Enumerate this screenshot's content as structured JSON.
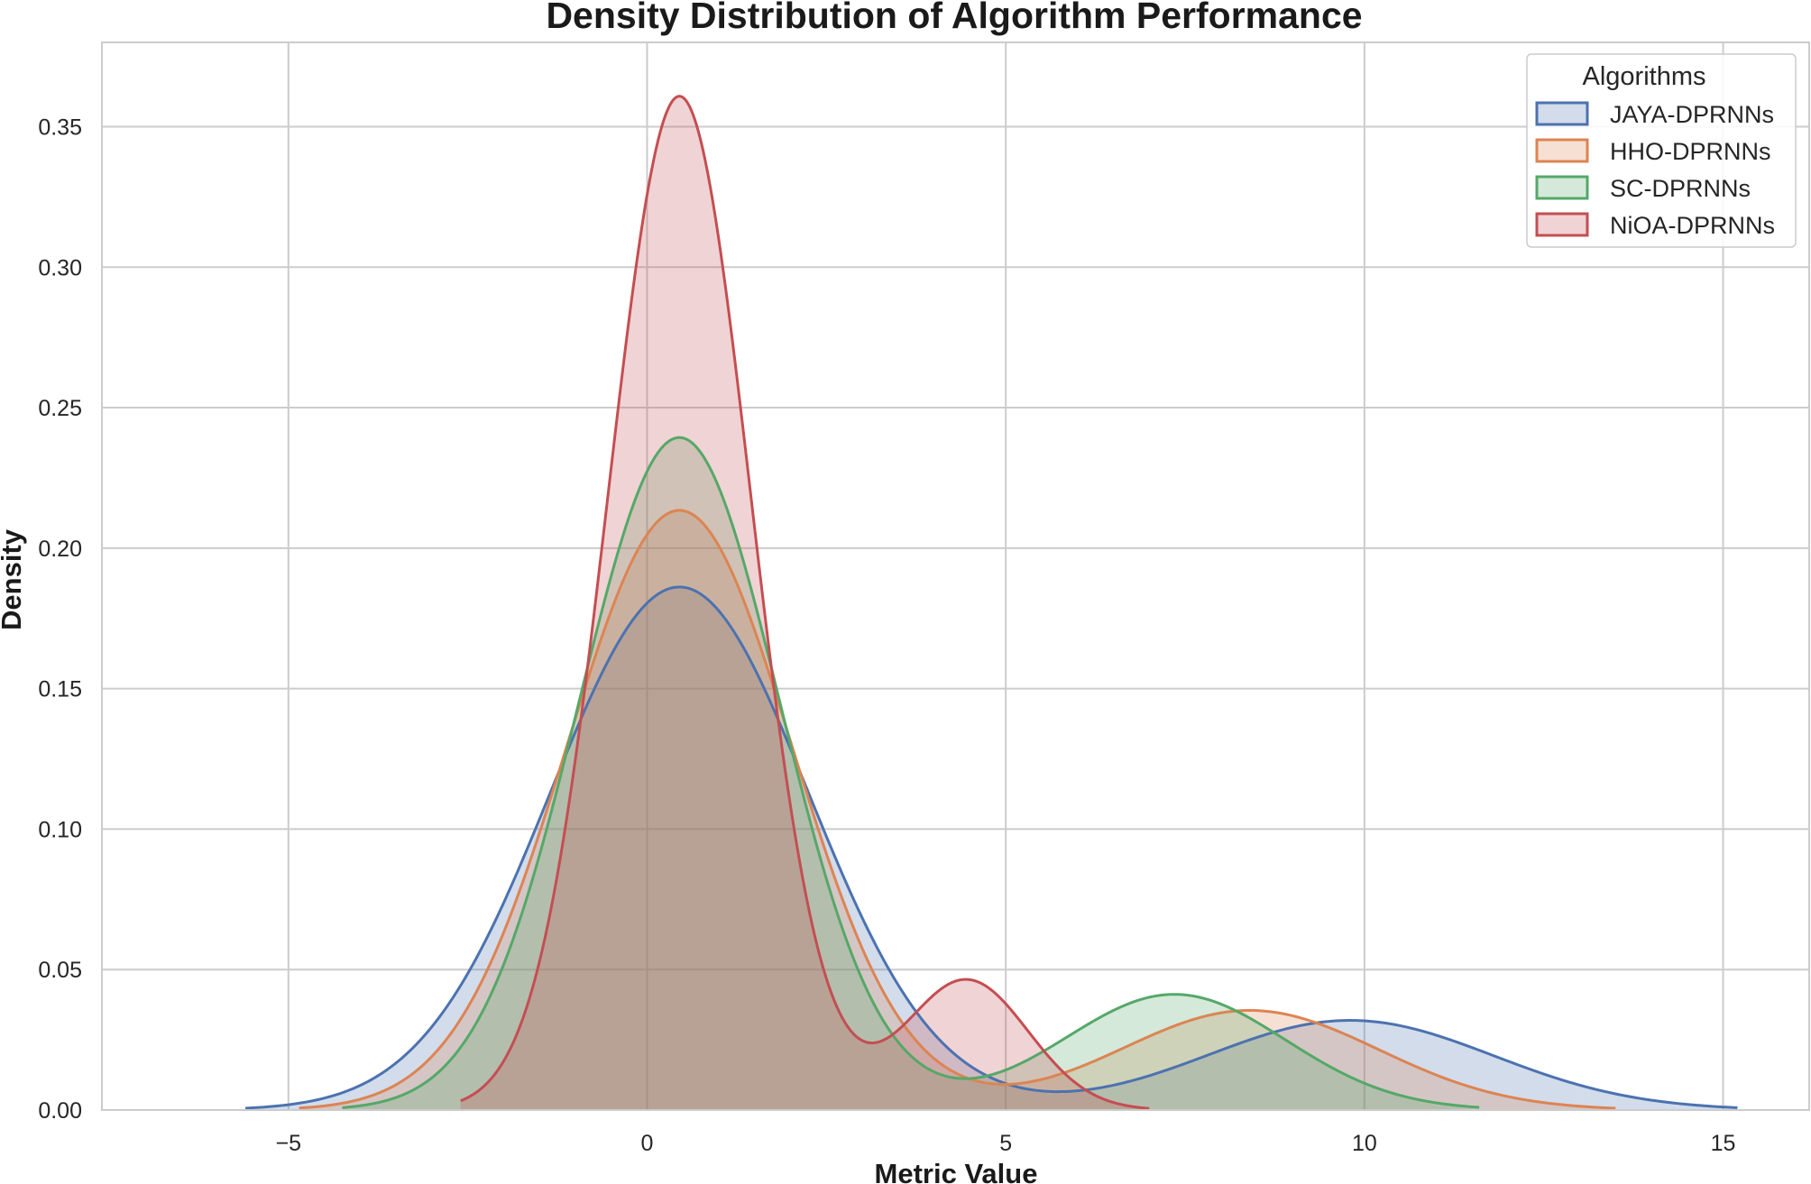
{
  "chart_data": {
    "type": "area",
    "subtype": "kde-density",
    "title": "Density Distribution of Algorithm Performance",
    "xlabel": "Metric Value",
    "ylabel": "Density",
    "xlim": [
      -7.6,
      16.2
    ],
    "ylim": [
      0,
      0.38
    ],
    "xticks": [
      -5,
      0,
      5,
      10,
      15
    ],
    "xtick_labels": [
      "−5",
      "0",
      "5",
      "10",
      "15"
    ],
    "yticks": [
      0,
      0.05,
      0.1,
      0.15,
      0.2,
      0.25,
      0.3,
      0.35
    ],
    "ytick_labels": [
      "0.00",
      "0.05",
      "0.10",
      "0.15",
      "0.20",
      "0.25",
      "0.30",
      "0.35"
    ],
    "grid": true,
    "legend": {
      "title": "Algorithms",
      "position": "top-right"
    },
    "series": [
      {
        "name": "JAYA-DPRNNs",
        "color": "#4c72b0",
        "range": [
          -5.6,
          15.2
        ],
        "components": [
          {
            "w": 0.84,
            "mu": 0.45,
            "sigma": 1.8
          },
          {
            "w": 0.16,
            "mu": 9.8,
            "sigma": 2.0
          }
        ]
      },
      {
        "name": "HHO-DPRNNs",
        "color": "#dd8452",
        "range": [
          -4.85,
          13.5
        ],
        "components": [
          {
            "w": 0.84,
            "mu": 0.45,
            "sigma": 1.57
          },
          {
            "w": 0.16,
            "mu": 8.4,
            "sigma": 1.8
          }
        ]
      },
      {
        "name": "SC-DPRNNs",
        "color": "#55a868",
        "range": [
          -4.25,
          11.6
        ],
        "components": [
          {
            "w": 0.84,
            "mu": 0.45,
            "sigma": 1.4
          },
          {
            "w": 0.16,
            "mu": 7.35,
            "sigma": 1.55
          }
        ]
      },
      {
        "name": "NiOA-DPRNNs",
        "color": "#c44e52",
        "range": [
          -2.6,
          7.0
        ],
        "components": [
          {
            "w": 0.9,
            "mu": 0.45,
            "sigma": 0.995
          },
          {
            "w": 0.1,
            "mu": 4.45,
            "sigma": 0.86
          }
        ]
      }
    ]
  }
}
